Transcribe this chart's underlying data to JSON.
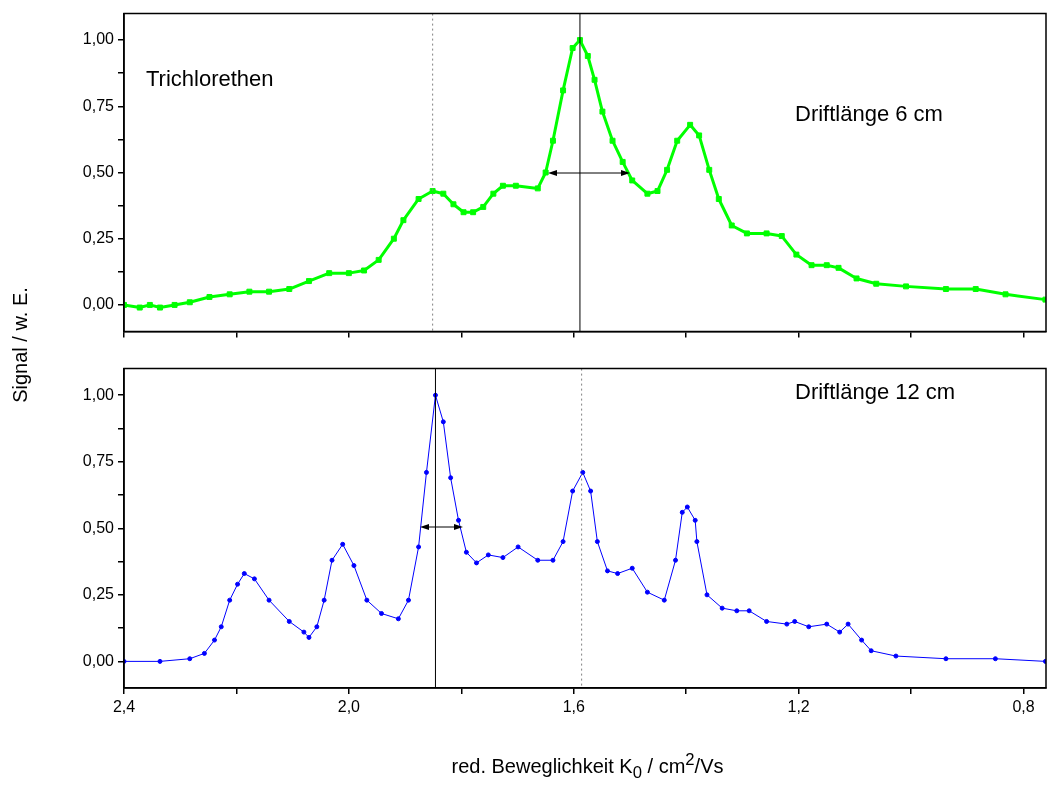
{
  "chart_data": [
    {
      "type": "line",
      "ylabel": "Signal / w. E.",
      "annotations": [
        "Trichlorethen",
        "Driftlänge 6 cm"
      ],
      "marker": "square",
      "tick_labels": "y",
      "xlim": [
        2.4,
        0.76
      ],
      "xticks": [
        {
          "value": 2.4,
          "label": null
        },
        {
          "value": 2.2,
          "label": null
        },
        {
          "value": 2.0,
          "label": null
        },
        {
          "value": 1.8,
          "label": null
        },
        {
          "value": 1.6,
          "label": null
        },
        {
          "value": 1.4,
          "label": null
        },
        {
          "value": 1.2,
          "label": null
        },
        {
          "value": 1.0,
          "label": null
        },
        {
          "value": 0.8,
          "label": null
        }
      ],
      "ylim": [
        -0.1,
        1.1
      ],
      "yticks": [
        {
          "value": 0,
          "label": "0,00"
        },
        {
          "value": 0.125,
          "label": null
        },
        {
          "value": 0.25,
          "label": "0,25"
        },
        {
          "value": 0.375,
          "label": null
        },
        {
          "value": 0.5,
          "label": "0,50"
        },
        {
          "value": 0.625,
          "label": null
        },
        {
          "value": 0.75,
          "label": "0,75"
        },
        {
          "value": 0.875,
          "label": null
        },
        {
          "value": 1,
          "label": "1,00"
        }
      ],
      "ref_lines": [
        {
          "axis": "x",
          "value": 1.851,
          "color": "#808080",
          "line_style": "dotted"
        },
        {
          "axis": "x",
          "value": 1.589,
          "color": "#000000",
          "line_style": "solid"
        }
      ],
      "series": [
        {
          "color": "#00ff00",
          "x": [
            2.4,
            2.372,
            2.354,
            2.336,
            2.31,
            2.283,
            2.248,
            2.212,
            2.177,
            2.142,
            2.106,
            2.071,
            2.035,
            2.0,
            1.973,
            1.947,
            1.92,
            1.903,
            1.876,
            1.851,
            1.832,
            1.814,
            1.796,
            1.779,
            1.761,
            1.743,
            1.726,
            1.703,
            1.664,
            1.65,
            1.637,
            1.619,
            1.602,
            1.589,
            1.575,
            1.563,
            1.549,
            1.531,
            1.513,
            1.496,
            1.469,
            1.451,
            1.434,
            1.416,
            1.393,
            1.377,
            1.359,
            1.342,
            1.319,
            1.292,
            1.257,
            1.23,
            1.204,
            1.177,
            1.15,
            1.129,
            1.097,
            1.062,
            1.009,
            0.938,
            0.885,
            0.832,
            0.761
          ],
          "values": [
            0.0,
            -0.01,
            0.0,
            -0.01,
            0.0,
            0.01,
            0.03,
            0.04,
            0.05,
            0.05,
            0.06,
            0.09,
            0.12,
            0.12,
            0.13,
            0.17,
            0.25,
            0.32,
            0.4,
            0.43,
            0.42,
            0.38,
            0.35,
            0.35,
            0.37,
            0.42,
            0.45,
            0.45,
            0.44,
            0.5,
            0.62,
            0.81,
            0.97,
            1.0,
            0.94,
            0.85,
            0.73,
            0.62,
            0.54,
            0.47,
            0.42,
            0.43,
            0.51,
            0.62,
            0.68,
            0.64,
            0.51,
            0.4,
            0.3,
            0.27,
            0.27,
            0.26,
            0.19,
            0.15,
            0.15,
            0.14,
            0.1,
            0.08,
            0.07,
            0.06,
            0.06,
            0.04,
            0.02
          ]
        }
      ]
    },
    {
      "type": "line",
      "xlabel": "red. Beweglichkeit K$_{0}$ / cm$^{2}$/Vs",
      "annotations": [
        "Driftlänge 12 cm"
      ],
      "marker": "circle",
      "xlim": [
        2.4,
        0.76
      ],
      "xticks": [
        {
          "value": 2.4,
          "label": "2,4"
        },
        {
          "value": 2.2,
          "label": null
        },
        {
          "value": 2.0,
          "label": "2,0"
        },
        {
          "value": 1.8,
          "label": null
        },
        {
          "value": 1.6,
          "label": "1,6"
        },
        {
          "value": 1.4,
          "label": null
        },
        {
          "value": 1.2,
          "label": "1,2"
        },
        {
          "value": 1.0,
          "label": null
        },
        {
          "value": 0.8,
          "label": "0,8"
        }
      ],
      "ylim": [
        -0.1,
        1.1
      ],
      "yticks": [
        {
          "value": 0,
          "label": "0,00"
        },
        {
          "value": 0.125,
          "label": null
        },
        {
          "value": 0.25,
          "label": "0,25"
        },
        {
          "value": 0.375,
          "label": null
        },
        {
          "value": 0.5,
          "label": "0,50"
        },
        {
          "value": 0.625,
          "label": null
        },
        {
          "value": 0.75,
          "label": "0,75"
        },
        {
          "value": 0.875,
          "label": null
        },
        {
          "value": 1,
          "label": "1,00"
        }
      ],
      "ref_lines": [
        {
          "axis": "x",
          "value": 1.846,
          "color": "#000000",
          "line_style": "solid"
        },
        {
          "axis": "x",
          "value": 1.586,
          "color": "#808080",
          "line_style": "dotted"
        }
      ],
      "series": [
        {
          "color": "#0000ff",
          "x": [
            2.4,
            2.336,
            2.283,
            2.257,
            2.239,
            2.227,
            2.212,
            2.198,
            2.186,
            2.168,
            2.142,
            2.106,
            2.08,
            2.071,
            2.057,
            2.044,
            2.03,
            2.011,
            1.991,
            1.968,
            1.942,
            1.912,
            1.894,
            1.876,
            1.862,
            1.846,
            1.832,
            1.819,
            1.805,
            1.791,
            1.773,
            1.752,
            1.726,
            1.699,
            1.664,
            1.637,
            1.619,
            1.602,
            1.584,
            1.57,
            1.558,
            1.54,
            1.522,
            1.496,
            1.469,
            1.439,
            1.419,
            1.407,
            1.398,
            1.384,
            1.381,
            1.363,
            1.336,
            1.31,
            1.288,
            1.257,
            1.221,
            1.207,
            1.182,
            1.15,
            1.127,
            1.112,
            1.088,
            1.071,
            1.027,
            0.938,
            0.85,
            0.761
          ],
          "values": [
            0.0,
            0.0,
            0.01,
            0.03,
            0.08,
            0.13,
            0.23,
            0.29,
            0.33,
            0.31,
            0.23,
            0.15,
            0.11,
            0.09,
            0.13,
            0.23,
            0.38,
            0.44,
            0.36,
            0.23,
            0.18,
            0.16,
            0.23,
            0.43,
            0.71,
            1.0,
            0.9,
            0.69,
            0.53,
            0.41,
            0.37,
            0.4,
            0.39,
            0.43,
            0.38,
            0.38,
            0.45,
            0.64,
            0.71,
            0.64,
            0.45,
            0.34,
            0.33,
            0.35,
            0.26,
            0.23,
            0.38,
            0.56,
            0.58,
            0.53,
            0.45,
            0.25,
            0.2,
            0.19,
            0.19,
            0.15,
            0.14,
            0.15,
            0.13,
            0.14,
            0.11,
            0.14,
            0.08,
            0.04,
            0.02,
            0.01,
            0.01,
            0.0
          ]
        }
      ]
    }
  ]
}
